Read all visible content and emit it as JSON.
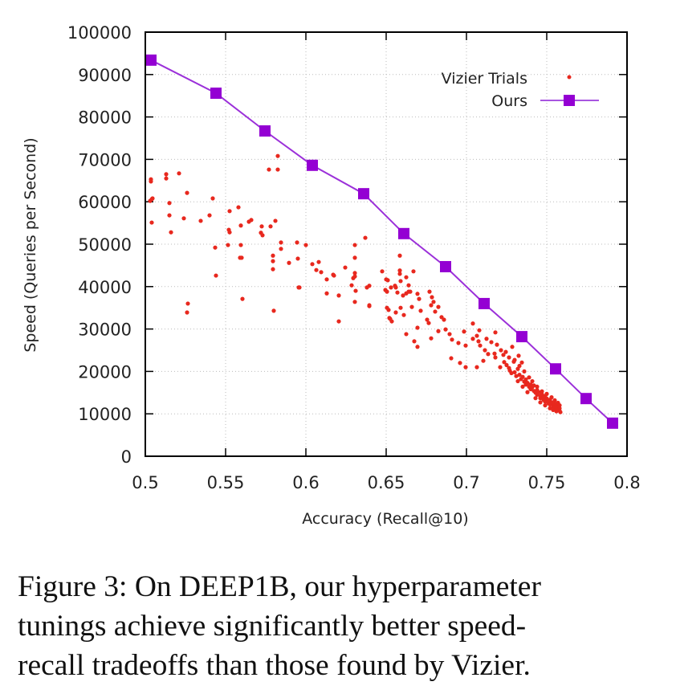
{
  "chart_data": {
    "type": "scatter",
    "title": "",
    "xlabel": "Accuracy (Recall@10)",
    "ylabel": "Speed (Queries per Second)",
    "xlim": [
      0.5,
      0.8
    ],
    "ylim": [
      0,
      100000
    ],
    "xticks": [
      0.5,
      0.55,
      0.6,
      0.65,
      0.7,
      0.75,
      0.8
    ],
    "xtick_labels": [
      "0.5",
      "0.55",
      "0.6",
      "0.65",
      "0.7",
      "0.75",
      "0.8"
    ],
    "yticks": [
      0,
      10000,
      20000,
      30000,
      40000,
      50000,
      60000,
      70000,
      80000,
      90000,
      100000
    ],
    "ytick_labels": [
      "0",
      "10000",
      "20000",
      "30000",
      "40000",
      "50000",
      "60000",
      "70000",
      "80000",
      "90000",
      "100000"
    ],
    "grid": true,
    "legend_position": "top-right",
    "series": [
      {
        "name": "Vizier Trials",
        "type": "scatter",
        "color": "#e8281e",
        "points": [
          [
            0.5035,
            65300
          ],
          [
            0.5035,
            64800
          ],
          [
            0.513,
            66500
          ],
          [
            0.513,
            65500
          ],
          [
            0.521,
            66700
          ],
          [
            0.503,
            60200
          ],
          [
            0.504,
            60600
          ],
          [
            0.5045,
            60800
          ],
          [
            0.526,
            62100
          ],
          [
            0.515,
            59700
          ],
          [
            0.542,
            60800
          ],
          [
            0.515,
            56800
          ],
          [
            0.524,
            56100
          ],
          [
            0.504,
            55100
          ],
          [
            0.5345,
            55500
          ],
          [
            0.54,
            56800
          ],
          [
            0.516,
            52800
          ],
          [
            0.5825,
            70800
          ],
          [
            0.577,
            67600
          ],
          [
            0.5825,
            67600
          ],
          [
            0.5525,
            57800
          ],
          [
            0.558,
            58700
          ],
          [
            0.5595,
            54400
          ],
          [
            0.552,
            53400
          ],
          [
            0.5525,
            52800
          ],
          [
            0.5645,
            55300
          ],
          [
            0.566,
            55700
          ],
          [
            0.5725,
            54200
          ],
          [
            0.572,
            52700
          ],
          [
            0.573,
            52100
          ],
          [
            0.578,
            54200
          ],
          [
            0.581,
            55500
          ],
          [
            0.5515,
            49800
          ],
          [
            0.5595,
            49800
          ],
          [
            0.5435,
            49200
          ],
          [
            0.559,
            46800
          ],
          [
            0.56,
            46800
          ],
          [
            0.544,
            42600
          ],
          [
            0.5605,
            37100
          ],
          [
            0.5265,
            36000
          ],
          [
            0.526,
            33900
          ],
          [
            0.5845,
            50400
          ],
          [
            0.5945,
            50400
          ],
          [
            0.6,
            49800
          ],
          [
            0.5845,
            48900
          ],
          [
            0.5795,
            47300
          ],
          [
            0.5795,
            46000
          ],
          [
            0.5795,
            44100
          ],
          [
            0.5895,
            45600
          ],
          [
            0.595,
            46600
          ],
          [
            0.5955,
            39800
          ],
          [
            0.604,
            45300
          ],
          [
            0.608,
            45800
          ],
          [
            0.6065,
            43900
          ],
          [
            0.6095,
            43400
          ],
          [
            0.613,
            41700
          ],
          [
            0.6175,
            42600
          ],
          [
            0.613,
            38400
          ],
          [
            0.6205,
            37900
          ],
          [
            0.58,
            34300
          ],
          [
            0.6205,
            31800
          ],
          [
            0.637,
            51500
          ],
          [
            0.6305,
            49800
          ],
          [
            0.6305,
            46800
          ],
          [
            0.6245,
            44500
          ],
          [
            0.6305,
            43200
          ],
          [
            0.6305,
            42400
          ],
          [
            0.617,
            42800
          ],
          [
            0.6285,
            40300
          ],
          [
            0.631,
            39000
          ],
          [
            0.638,
            39800
          ],
          [
            0.6395,
            40200
          ],
          [
            0.6305,
            36400
          ],
          [
            0.6395,
            35600
          ],
          [
            0.6475,
            43600
          ],
          [
            0.65,
            41700
          ],
          [
            0.6495,
            39200
          ],
          [
            0.6515,
            34500
          ],
          [
            0.6525,
            32400
          ],
          [
            0.6585,
            47300
          ],
          [
            0.6585,
            43000
          ],
          [
            0.6625,
            42200
          ],
          [
            0.659,
            41300
          ],
          [
            0.6625,
            38400
          ],
          [
            0.667,
            43600
          ],
          [
            0.656,
            39800
          ],
          [
            0.656,
            33900
          ],
          [
            0.664,
            38800
          ],
          [
            0.6535,
            31800
          ],
          [
            0.651,
            41500
          ],
          [
            0.653,
            39800
          ],
          [
            0.6555,
            40200
          ],
          [
            0.657,
            38600
          ],
          [
            0.6585,
            43800
          ],
          [
            0.659,
            35000
          ],
          [
            0.6605,
            37900
          ],
          [
            0.661,
            33300
          ],
          [
            0.664,
            40300
          ],
          [
            0.665,
            38800
          ],
          [
            0.666,
            35200
          ],
          [
            0.6695,
            38300
          ],
          [
            0.6705,
            37100
          ],
          [
            0.6715,
            34300
          ],
          [
            0.6755,
            32200
          ],
          [
            0.6765,
            31400
          ],
          [
            0.677,
            38800
          ],
          [
            0.6785,
            37500
          ],
          [
            0.678,
            35600
          ],
          [
            0.6795,
            36400
          ],
          [
            0.6805,
            34100
          ],
          [
            0.6825,
            35200
          ],
          [
            0.6845,
            32800
          ],
          [
            0.686,
            32200
          ],
          [
            0.6695,
            30300
          ],
          [
            0.6675,
            27100
          ],
          [
            0.6695,
            25800
          ],
          [
            0.678,
            27800
          ],
          [
            0.6825,
            29500
          ],
          [
            0.687,
            29900
          ],
          [
            0.6895,
            28800
          ],
          [
            0.691,
            27500
          ],
          [
            0.695,
            26700
          ],
          [
            0.6985,
            29400
          ],
          [
            0.6995,
            26100
          ],
          [
            0.6905,
            23100
          ],
          [
            0.696,
            22000
          ],
          [
            0.6995,
            21000
          ],
          [
            0.6625,
            28800
          ],
          [
            0.704,
            31300
          ],
          [
            0.708,
            29700
          ],
          [
            0.7075,
            27100
          ],
          [
            0.7065,
            28400
          ],
          [
            0.7085,
            26100
          ],
          [
            0.7115,
            25000
          ],
          [
            0.7105,
            22500
          ],
          [
            0.704,
            27700
          ],
          [
            0.718,
            29200
          ],
          [
            0.719,
            26300
          ],
          [
            0.718,
            23300
          ],
          [
            0.7215,
            25000
          ],
          [
            0.723,
            23900
          ],
          [
            0.721,
            21000
          ],
          [
            0.7285,
            25800
          ],
          [
            0.7295,
            22300
          ],
          [
            0.7065,
            21000
          ],
          [
            0.7135,
            24100
          ],
          [
            0.7235,
            22200
          ],
          [
            0.7265,
            20800
          ],
          [
            0.596,
            39800
          ],
          [
            0.6295,
            42000
          ],
          [
            0.6505,
            38800
          ],
          [
            0.6505,
            35000
          ],
          [
            0.652,
            32600
          ],
          [
            0.6395,
            35400
          ],
          [
            0.725,
            21500
          ],
          [
            0.727,
            20200
          ],
          [
            0.728,
            19600
          ],
          [
            0.73,
            19800
          ],
          [
            0.731,
            18900
          ],
          [
            0.732,
            20600
          ],
          [
            0.733,
            19200
          ],
          [
            0.734,
            18200
          ],
          [
            0.735,
            18700
          ],
          [
            0.736,
            17600
          ],
          [
            0.737,
            18100
          ],
          [
            0.737,
            16900
          ],
          [
            0.738,
            17300
          ],
          [
            0.739,
            16400
          ],
          [
            0.74,
            16900
          ],
          [
            0.74,
            15800
          ],
          [
            0.741,
            16300
          ],
          [
            0.742,
            15400
          ],
          [
            0.742,
            16700
          ],
          [
            0.743,
            15000
          ],
          [
            0.744,
            15600
          ],
          [
            0.744,
            14500
          ],
          [
            0.745,
            15100
          ],
          [
            0.746,
            14200
          ],
          [
            0.746,
            13700
          ],
          [
            0.747,
            14600
          ],
          [
            0.748,
            13900
          ],
          [
            0.748,
            13300
          ],
          [
            0.749,
            14200
          ],
          [
            0.749,
            12900
          ],
          [
            0.75,
            13600
          ],
          [
            0.751,
            13000
          ],
          [
            0.751,
            12500
          ],
          [
            0.752,
            13300
          ],
          [
            0.752,
            12200
          ],
          [
            0.753,
            12700
          ],
          [
            0.754,
            12100
          ],
          [
            0.754,
            11700
          ],
          [
            0.755,
            12400
          ],
          [
            0.755,
            11500
          ],
          [
            0.756,
            11900
          ],
          [
            0.756,
            11200
          ],
          [
            0.757,
            11600
          ],
          [
            0.757,
            11000
          ],
          [
            0.758,
            11300
          ],
          [
            0.758,
            10700
          ],
          [
            0.7585,
            10400
          ],
          [
            0.733,
            21300
          ],
          [
            0.736,
            20000
          ],
          [
            0.739,
            18600
          ],
          [
            0.741,
            17700
          ],
          [
            0.744,
            16400
          ],
          [
            0.747,
            15300
          ],
          [
            0.75,
            14700
          ],
          [
            0.753,
            13900
          ],
          [
            0.755,
            13200
          ],
          [
            0.757,
            12600
          ],
          [
            0.758,
            12000
          ],
          [
            0.732,
            17700
          ],
          [
            0.735,
            16400
          ],
          [
            0.738,
            15100
          ],
          [
            0.743,
            13700
          ],
          [
            0.746,
            12700
          ],
          [
            0.749,
            12000
          ],
          [
            0.752,
            11300
          ],
          [
            0.754,
            10900
          ],
          [
            0.756,
            10600
          ],
          [
            0.7155,
            26900
          ],
          [
            0.7175,
            24200
          ],
          [
            0.7245,
            24600
          ],
          [
            0.7265,
            23300
          ],
          [
            0.73,
            22700
          ],
          [
            0.7325,
            23700
          ],
          [
            0.7345,
            22100
          ],
          [
            0.7125,
            27700
          ]
        ]
      },
      {
        "name": "Ours",
        "type": "line",
        "marker": "square",
        "color": "#9400d3",
        "points": [
          [
            0.5035,
            93400
          ],
          [
            0.544,
            85600
          ],
          [
            0.5745,
            76700
          ],
          [
            0.604,
            68600
          ],
          [
            0.636,
            61900
          ],
          [
            0.661,
            52500
          ],
          [
            0.687,
            44700
          ],
          [
            0.711,
            36000
          ],
          [
            0.7345,
            28200
          ],
          [
            0.7555,
            20600
          ],
          [
            0.7745,
            13600
          ],
          [
            0.791,
            7800
          ]
        ]
      }
    ]
  },
  "caption": {
    "lines": [
      "Figure 3: On DEEP1B, our hyperparameter",
      "tunings achieve significantly better speed-",
      "recall tradeoffs than those found by Vizier."
    ]
  }
}
